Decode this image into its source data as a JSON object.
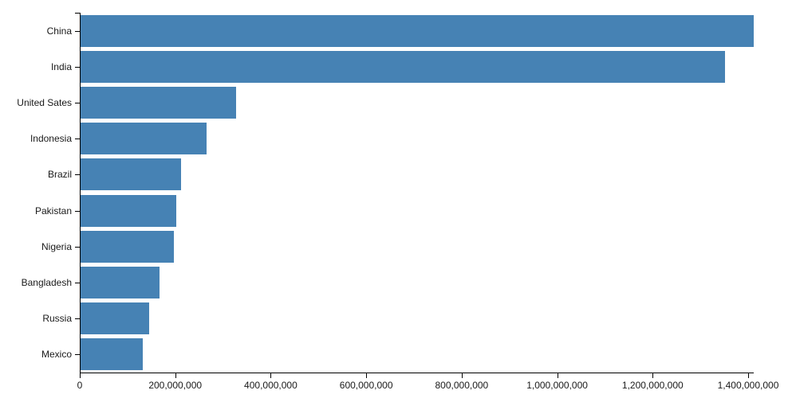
{
  "chart_data": {
    "type": "bar",
    "orientation": "horizontal",
    "title": "",
    "xlabel": "",
    "ylabel": "",
    "categories": [
      "China",
      "India",
      "United Sates",
      "Indonesia",
      "Brazil",
      "Pakistan",
      "Nigeria",
      "Bangladesh",
      "Russia",
      "Mexico"
    ],
    "values": [
      1410000000,
      1350000000,
      325000000,
      264000000,
      210000000,
      200000000,
      195000000,
      165000000,
      144000000,
      130000000
    ],
    "xlim": [
      0,
      1410000000
    ],
    "x_ticks": [
      0,
      200000000,
      400000000,
      600000000,
      800000000,
      1000000000,
      1200000000,
      1400000000
    ],
    "x_tick_labels": [
      "0",
      "200,000,000",
      "400,000,000",
      "600,000,000",
      "800,000,000",
      "1,000,000,000",
      "1,200,000,000",
      "1,400,000,000"
    ],
    "grid": false,
    "legend": null,
    "bar_color": "#4682b4",
    "axis_color": "#000000",
    "text_color": "#1a1a1a"
  }
}
